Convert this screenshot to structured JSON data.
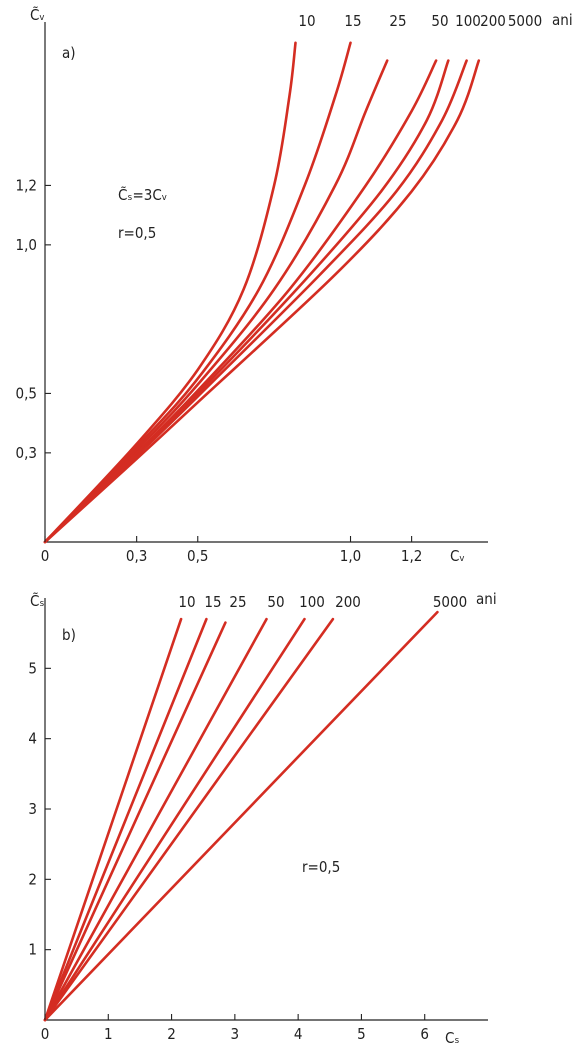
{
  "chart_data": [
    {
      "type": "line",
      "panel_label": "a)",
      "xlabel": "Cᵥ",
      "ylabel": "C̃ᵥ",
      "xlim": [
        0,
        1.45
      ],
      "ylim": [
        0,
        1.75
      ],
      "x_ticks": [
        "0",
        "0,3",
        "0,5",
        "1,0",
        "1,2"
      ],
      "x_tick_values": [
        0,
        0.3,
        0.5,
        1.0,
        1.2
      ],
      "y_ticks": [
        "0,3",
        "0,5",
        "1,0",
        "1,2"
      ],
      "y_tick_values": [
        0.3,
        0.5,
        1.0,
        1.2
      ],
      "annotations": [
        "C̃ₛ=3Cᵥ",
        "r=0,5"
      ],
      "unit_suffix": "ani",
      "series": [
        {
          "name": "10",
          "color": "#d42d22",
          "points": [
            [
              0,
              0
            ],
            [
              0.3,
              0.33
            ],
            [
              0.5,
              0.58
            ],
            [
              0.65,
              0.85
            ],
            [
              0.75,
              1.2
            ],
            [
              0.8,
              1.5
            ],
            [
              0.82,
              1.68
            ]
          ]
        },
        {
          "name": "15",
          "color": "#d42d22",
          "points": [
            [
              0,
              0
            ],
            [
              0.3,
              0.32
            ],
            [
              0.5,
              0.55
            ],
            [
              0.7,
              0.85
            ],
            [
              0.85,
              1.2
            ],
            [
              0.95,
              1.5
            ],
            [
              1.0,
              1.68
            ]
          ]
        },
        {
          "name": "25",
          "color": "#d42d22",
          "points": [
            [
              0,
              0
            ],
            [
              0.3,
              0.31
            ],
            [
              0.5,
              0.53
            ],
            [
              0.75,
              0.85
            ],
            [
              0.95,
              1.2
            ],
            [
              1.05,
              1.45
            ],
            [
              1.12,
              1.62
            ]
          ]
        },
        {
          "name": "50",
          "color": "#d42d22",
          "points": [
            [
              0,
              0
            ],
            [
              0.3,
              0.3
            ],
            [
              0.5,
              0.51
            ],
            [
              0.8,
              0.85
            ],
            [
              1.05,
              1.2
            ],
            [
              1.2,
              1.45
            ],
            [
              1.28,
              1.62
            ]
          ]
        },
        {
          "name": "100",
          "color": "#d42d22",
          "points": [
            [
              0,
              0
            ],
            [
              0.3,
              0.3
            ],
            [
              0.5,
              0.5
            ],
            [
              0.85,
              0.88
            ],
            [
              1.1,
              1.18
            ],
            [
              1.25,
              1.42
            ],
            [
              1.32,
              1.62
            ]
          ]
        },
        {
          "name": "200",
          "color": "#d42d22",
          "points": [
            [
              0,
              0
            ],
            [
              0.3,
              0.29
            ],
            [
              0.5,
              0.49
            ],
            [
              0.9,
              0.9
            ],
            [
              1.15,
              1.18
            ],
            [
              1.3,
              1.42
            ],
            [
              1.38,
              1.62
            ]
          ]
        },
        {
          "name": "5000",
          "color": "#d42d22",
          "points": [
            [
              0,
              0
            ],
            [
              0.3,
              0.28
            ],
            [
              0.5,
              0.47
            ],
            [
              0.95,
              0.9
            ],
            [
              1.2,
              1.18
            ],
            [
              1.35,
              1.42
            ],
            [
              1.42,
              1.62
            ]
          ]
        }
      ]
    },
    {
      "type": "line",
      "panel_label": "b)",
      "xlabel": "Cₛ",
      "ylabel": "C̃ₛ",
      "xlim": [
        0,
        7.0
      ],
      "ylim": [
        0,
        6.0
      ],
      "x_ticks": [
        "0",
        "1",
        "2",
        "3",
        "4",
        "5",
        "6"
      ],
      "x_tick_values": [
        0,
        1,
        2,
        3,
        4,
        5,
        6
      ],
      "y_ticks": [
        "1",
        "2",
        "3",
        "4",
        "5"
      ],
      "y_tick_values": [
        1,
        2,
        3,
        4,
        5
      ],
      "annotations": [
        "r=0,5"
      ],
      "unit_suffix": "ani",
      "series": [
        {
          "name": "10",
          "color": "#d42d22",
          "points": [
            [
              0,
              0
            ],
            [
              2.15,
              5.7
            ]
          ]
        },
        {
          "name": "15",
          "color": "#d42d22",
          "points": [
            [
              0,
              0
            ],
            [
              2.55,
              5.7
            ]
          ]
        },
        {
          "name": "25",
          "color": "#d42d22",
          "points": [
            [
              0,
              0
            ],
            [
              2.85,
              5.65
            ]
          ]
        },
        {
          "name": "50",
          "color": "#d42d22",
          "points": [
            [
              0,
              0
            ],
            [
              3.5,
              5.7
            ]
          ]
        },
        {
          "name": "100",
          "color": "#d42d22",
          "points": [
            [
              0,
              0
            ],
            [
              4.1,
              5.7
            ]
          ]
        },
        {
          "name": "200",
          "color": "#d42d22",
          "points": [
            [
              0,
              0
            ],
            [
              4.55,
              5.7
            ]
          ]
        },
        {
          "name": "5000",
          "color": "#d42d22",
          "points": [
            [
              0,
              0
            ],
            [
              6.2,
              5.8
            ]
          ]
        }
      ]
    }
  ]
}
